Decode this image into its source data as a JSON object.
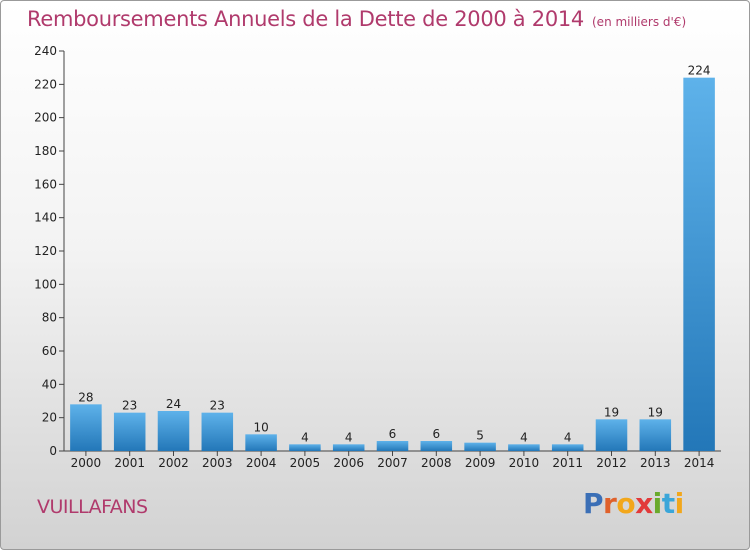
{
  "header": {
    "title": "Remboursements Annuels de la Dette de 2000 à 2014",
    "unit": "(en milliers d'€)"
  },
  "footer": {
    "place": "VUILLAFANS",
    "logo": [
      "P",
      "r",
      "o",
      "x",
      "i",
      "t",
      "i"
    ]
  },
  "colors": {
    "title": "#b03a6c",
    "bar_top": "#5eb2ea",
    "bar_bottom": "#2377b8"
  },
  "chart_data": {
    "type": "bar",
    "title": "Remboursements Annuels de la Dette de 2000 à 2014",
    "xlabel": "",
    "ylabel": "",
    "categories": [
      "2000",
      "2001",
      "2002",
      "2003",
      "2004",
      "2005",
      "2006",
      "2007",
      "2008",
      "2009",
      "2010",
      "2011",
      "2012",
      "2013",
      "2014"
    ],
    "values": [
      28,
      23,
      24,
      23,
      10,
      4,
      4,
      6,
      6,
      5,
      4,
      4,
      19,
      19,
      224
    ],
    "ylim": [
      0,
      240
    ],
    "yticks": [
      0,
      20,
      40,
      60,
      80,
      100,
      120,
      140,
      160,
      180,
      200,
      220,
      240
    ],
    "grid": false,
    "legend": "none"
  }
}
